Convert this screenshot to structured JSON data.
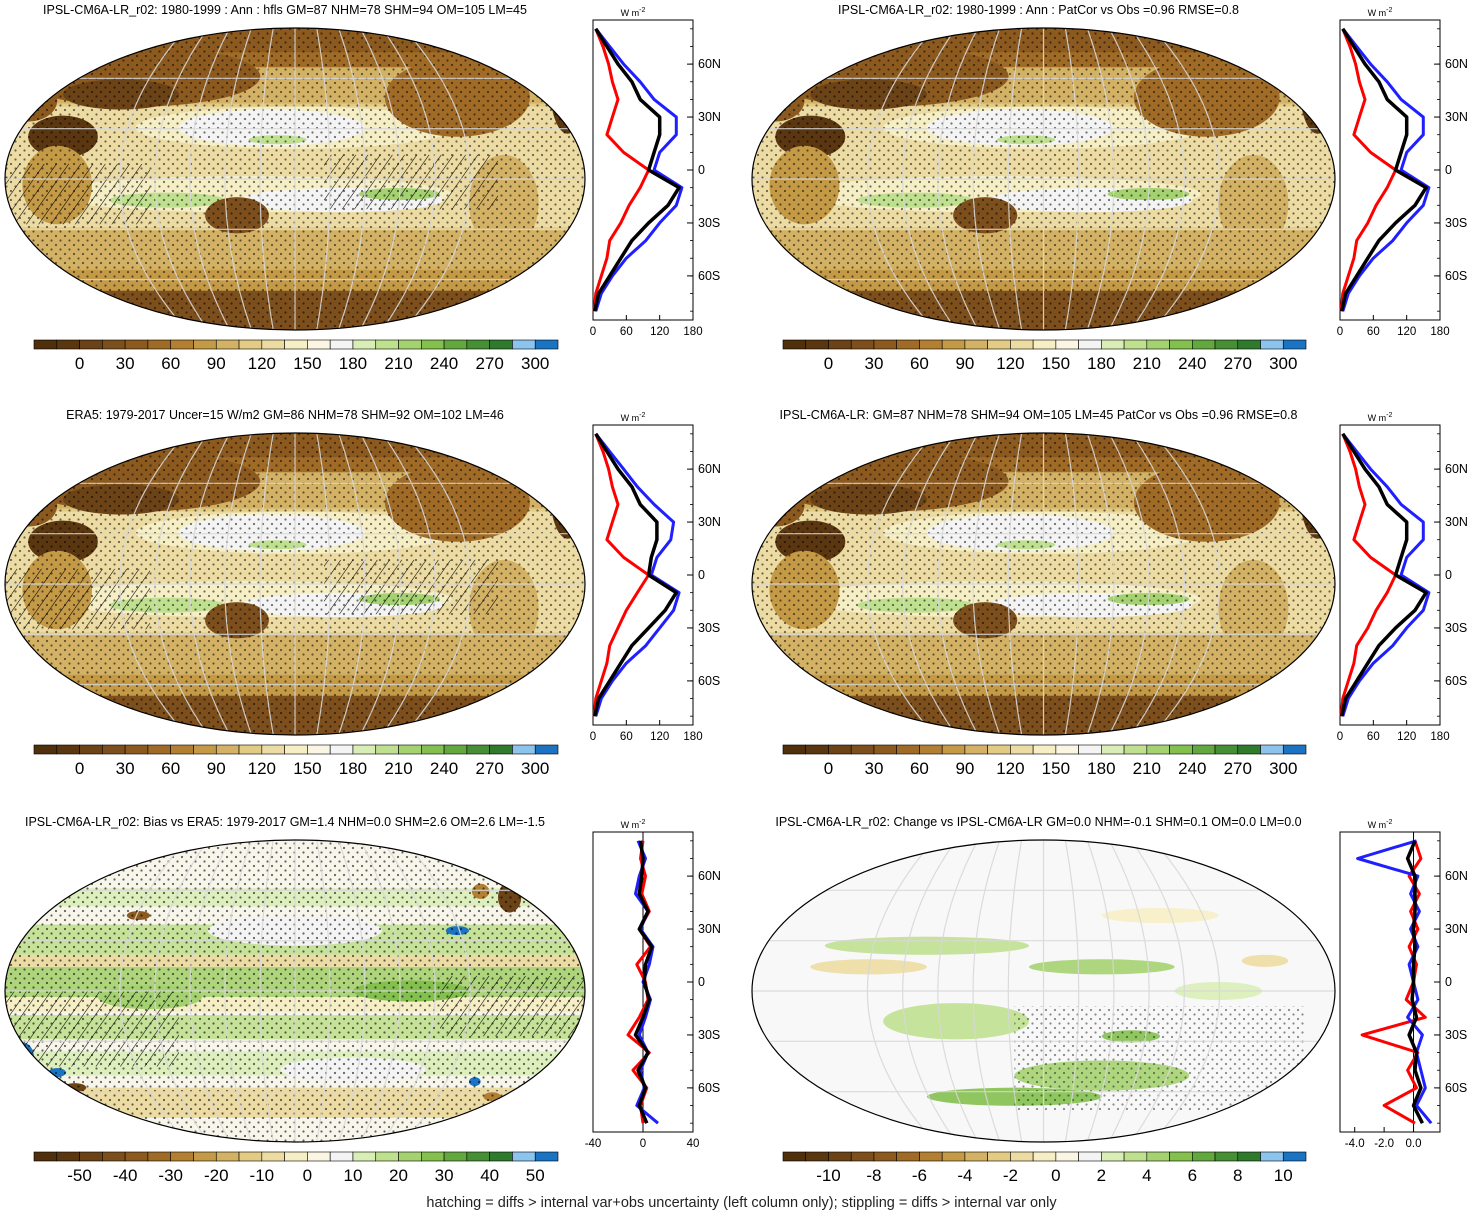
{
  "footer": "hatching = diffs > internal var+obs uncertainty (left column only); stippling = diffs > internal var only",
  "colors": {
    "brown_dark": "#5a3710",
    "brown": "#8c5a1f",
    "tan": "#c49a47",
    "sand": "#e2cb84",
    "cream": "#f6eec4",
    "white": "#f8f8f8",
    "green_light": "#bfe08f",
    "green": "#84c04e",
    "green_dark": "#2f7a2c",
    "blue_light": "#8cc4ee",
    "blue": "#1a74c3",
    "line_red": "#ff0000",
    "line_blue": "#1f1fff",
    "line_black": "#000000"
  },
  "chart_data": [
    {
      "type": "heatmap",
      "title": "IPSL-CM6A-LR_r02: 1980-1999 : Ann : hfls GM=87 NHM=78 SHM=94 OM=105 LM=45",
      "colorbar": [
        "0",
        "30",
        "60",
        "90",
        "120",
        "150",
        "180",
        "210",
        "240",
        "270",
        "300"
      ],
      "levels": [
        -15,
        0,
        15,
        30,
        45,
        60,
        75,
        90,
        105,
        120,
        135,
        150,
        165,
        180,
        195,
        210,
        225,
        240,
        255,
        270,
        285,
        300,
        315
      ],
      "lat_profile": {
        "unit": "W m-2",
        "xlim": [
          0,
          180
        ],
        "xticks": [
          "0",
          "60",
          "120",
          "180"
        ],
        "yticks": [
          "60N",
          "30N",
          "0",
          "30S",
          "60S"
        ],
        "lat": [
          80,
          70,
          60,
          50,
          40,
          30,
          20,
          10,
          0,
          -10,
          -20,
          -30,
          -40,
          -50,
          -60,
          -70,
          -80
        ],
        "series": [
          {
            "color": "red",
            "values": [
              5,
              18,
              28,
              35,
              45,
              35,
              25,
              55,
              100,
              85,
              65,
              50,
              30,
              25,
              15,
              5,
              2
            ]
          },
          {
            "color": "blue",
            "values": [
              5,
              30,
              55,
              85,
              110,
              150,
              150,
              120,
              110,
              160,
              150,
              120,
              95,
              60,
              35,
              15,
              5
            ]
          },
          {
            "color": "black",
            "values": [
              5,
              25,
              45,
              70,
              85,
              120,
              120,
              110,
              100,
              155,
              135,
              100,
              70,
              50,
              30,
              10,
              3
            ]
          }
        ]
      }
    },
    {
      "type": "heatmap",
      "title": "IPSL-CM6A-LR_r02: 1980-1999 : Ann : PatCor vs Obs =0.96 RMSE=0.8",
      "colorbar": [
        "0",
        "30",
        "60",
        "90",
        "120",
        "150",
        "180",
        "210",
        "240",
        "270",
        "300"
      ],
      "levels": [
        -15,
        0,
        15,
        30,
        45,
        60,
        75,
        90,
        105,
        120,
        135,
        150,
        165,
        180,
        195,
        210,
        225,
        240,
        255,
        270,
        285,
        300,
        315
      ],
      "lat_profile": {
        "unit": "W m-2",
        "xlim": [
          0,
          180
        ],
        "xticks": [
          "0",
          "60",
          "120",
          "180"
        ],
        "yticks": [
          "60N",
          "30N",
          "0",
          "30S",
          "60S"
        ],
        "lat": [
          80,
          70,
          60,
          50,
          40,
          30,
          20,
          10,
          0,
          -10,
          -20,
          -30,
          -40,
          -50,
          -60,
          -70,
          -80
        ],
        "series": [
          {
            "color": "red",
            "values": [
              5,
              18,
              28,
              35,
              45,
              35,
              25,
              55,
              100,
              85,
              65,
              50,
              30,
              25,
              15,
              5,
              2
            ]
          },
          {
            "color": "blue",
            "values": [
              5,
              30,
              55,
              85,
              110,
              150,
              150,
              120,
              110,
              160,
              150,
              120,
              95,
              60,
              35,
              15,
              5
            ]
          },
          {
            "color": "black",
            "values": [
              5,
              25,
              45,
              70,
              85,
              120,
              120,
              110,
              100,
              155,
              135,
              100,
              70,
              50,
              30,
              10,
              3
            ]
          }
        ]
      }
    },
    {
      "type": "heatmap",
      "title": "ERA5: 1979-2017 Uncer=15 W/m2 GM=86 NHM=78 SHM=92 OM=102 LM=46",
      "colorbar": [
        "0",
        "30",
        "60",
        "90",
        "120",
        "150",
        "180",
        "210",
        "240",
        "270",
        "300"
      ],
      "levels": [
        -15,
        0,
        15,
        30,
        45,
        60,
        75,
        90,
        105,
        120,
        135,
        150,
        165,
        180,
        195,
        210,
        225,
        240,
        255,
        270,
        285,
        300,
        315
      ],
      "lat_profile": {
        "unit": "W m-2",
        "xlim": [
          0,
          180
        ],
        "xticks": [
          "0",
          "60",
          "120",
          "180"
        ],
        "yticks": [
          "60N",
          "30N",
          "0",
          "30S",
          "60S"
        ],
        "lat": [
          80,
          70,
          60,
          50,
          40,
          30,
          20,
          10,
          0,
          -10,
          -20,
          -30,
          -40,
          -50,
          -60,
          -70,
          -80
        ],
        "series": [
          {
            "color": "red",
            "values": [
              5,
              18,
              28,
              35,
              45,
              35,
              25,
              55,
              100,
              80,
              60,
              45,
              30,
              25,
              15,
              5,
              2
            ]
          },
          {
            "color": "blue",
            "values": [
              5,
              30,
              55,
              80,
              110,
              145,
              140,
              115,
              105,
              155,
              145,
              120,
              95,
              60,
              35,
              15,
              5
            ]
          },
          {
            "color": "black",
            "values": [
              5,
              25,
              45,
              70,
              85,
              115,
              115,
              105,
              100,
              150,
              130,
              100,
              70,
              50,
              30,
              10,
              3
            ]
          }
        ]
      }
    },
    {
      "type": "heatmap",
      "title": "IPSL-CM6A-LR: GM=87 NHM=78 SHM=94 OM=105 LM=45 PatCor vs Obs =0.96 RMSE=0.8",
      "colorbar": [
        "0",
        "30",
        "60",
        "90",
        "120",
        "150",
        "180",
        "210",
        "240",
        "270",
        "300"
      ],
      "levels": [
        -15,
        0,
        15,
        30,
        45,
        60,
        75,
        90,
        105,
        120,
        135,
        150,
        165,
        180,
        195,
        210,
        225,
        240,
        255,
        270,
        285,
        300,
        315
      ],
      "lat_profile": {
        "unit": "W m-2",
        "xlim": [
          0,
          180
        ],
        "xticks": [
          "0",
          "60",
          "120",
          "180"
        ],
        "yticks": [
          "60N",
          "30N",
          "0",
          "30S",
          "60S"
        ],
        "lat": [
          80,
          70,
          60,
          50,
          40,
          30,
          20,
          10,
          0,
          -10,
          -20,
          -30,
          -40,
          -50,
          -60,
          -70,
          -80
        ],
        "series": [
          {
            "color": "red",
            "values": [
              5,
              18,
              28,
              35,
              45,
              35,
              25,
              55,
              100,
              85,
              65,
              50,
              30,
              25,
              15,
              5,
              2
            ]
          },
          {
            "color": "blue",
            "values": [
              5,
              30,
              55,
              85,
              110,
              150,
              150,
              120,
              110,
              160,
              150,
              120,
              95,
              60,
              35,
              15,
              5
            ]
          },
          {
            "color": "black",
            "values": [
              5,
              25,
              45,
              70,
              85,
              120,
              120,
              110,
              100,
              155,
              135,
              100,
              70,
              50,
              30,
              10,
              3
            ]
          }
        ]
      }
    },
    {
      "type": "heatmap",
      "title": "IPSL-CM6A-LR_r02: Bias vs ERA5: 1979-2017 GM=1.4 NHM=0.0 SHM=2.6 OM=2.6 LM=-1.5",
      "colorbar": [
        "-50",
        "-40",
        "-30",
        "-20",
        "-10",
        "0",
        "10",
        "20",
        "30",
        "40",
        "50"
      ],
      "levels": [
        -55,
        -50,
        -45,
        -40,
        -35,
        -30,
        -25,
        -20,
        -15,
        -10,
        -5,
        0,
        5,
        10,
        15,
        20,
        25,
        30,
        35,
        40,
        45,
        50,
        55
      ],
      "lat_profile": {
        "unit": "W m-2",
        "xlim": [
          -40,
          40
        ],
        "xticks": [
          "-40",
          "0",
          "40"
        ],
        "yticks": [
          "60N",
          "30N",
          "0",
          "30S",
          "60S"
        ],
        "lat": [
          80,
          70,
          60,
          50,
          40,
          30,
          20,
          10,
          0,
          -10,
          -20,
          -30,
          -40,
          -50,
          -60,
          -70,
          -80
        ],
        "series": [
          {
            "color": "red",
            "values": [
              0,
              -2,
              2,
              -1,
              5,
              -3,
              6,
              -5,
              2,
              4,
              -3,
              -12,
              5,
              -8,
              3,
              -2,
              0
            ]
          },
          {
            "color": "blue",
            "values": [
              -4,
              2,
              -3,
              -6,
              4,
              -2,
              8,
              5,
              0,
              6,
              2,
              -3,
              4,
              -2,
              1,
              -5,
              12
            ]
          },
          {
            "color": "black",
            "values": [
              -2,
              0,
              -1,
              -3,
              4,
              -3,
              7,
              2,
              1,
              5,
              0,
              -6,
              4,
              -4,
              2,
              -3,
              3
            ]
          }
        ]
      }
    },
    {
      "type": "heatmap",
      "title": "IPSL-CM6A-LR_r02: Change vs IPSL-CM6A-LR GM=0.0 NHM=-0.1 SHM=0.1 OM=0.0 LM=0.0",
      "colorbar": [
        "-10",
        "-8",
        "-6",
        "-4",
        "-2",
        "0",
        "2",
        "4",
        "6",
        "8",
        "10"
      ],
      "levels": [
        -11,
        -10,
        -9,
        -8,
        -7,
        -6,
        -5,
        -4,
        -3,
        -2,
        -1,
        0,
        1,
        2,
        3,
        4,
        5,
        6,
        7,
        8,
        9,
        10,
        11
      ],
      "lat_profile": {
        "unit": "W m-2",
        "xlim": [
          -5,
          1.8
        ],
        "xticks": [
          "-4.0",
          "-2.0",
          "0.0"
        ],
        "yticks": [
          "60N",
          "30N",
          "0",
          "30S",
          "60S"
        ],
        "lat": [
          80,
          70,
          60,
          50,
          40,
          30,
          20,
          10,
          0,
          -10,
          -20,
          -30,
          -40,
          -50,
          -60,
          -70,
          -80
        ],
        "series": [
          {
            "color": "red",
            "values": [
              0.1,
              0.5,
              -0.3,
              0.4,
              -0.2,
              0.3,
              -0.3,
              0.2,
              0,
              -0.5,
              0.8,
              -3.5,
              0.3,
              -0.4,
              0.2,
              -2.0,
              0.1
            ]
          },
          {
            "color": "blue",
            "values": [
              0.2,
              -3.8,
              0.3,
              -0.2,
              0.4,
              -0.2,
              0.3,
              -0.3,
              0,
              0.3,
              -0.4,
              0.6,
              0.2,
              0.5,
              0.8,
              0.2,
              1.2
            ]
          },
          {
            "color": "black",
            "values": [
              0.1,
              -0.4,
              0.1,
              0.1,
              0.1,
              0.0,
              0.1,
              0.0,
              0,
              -0.1,
              0.2,
              -0.3,
              0.2,
              0.1,
              0.5,
              0.0,
              0.6
            ]
          }
        ]
      }
    }
  ]
}
